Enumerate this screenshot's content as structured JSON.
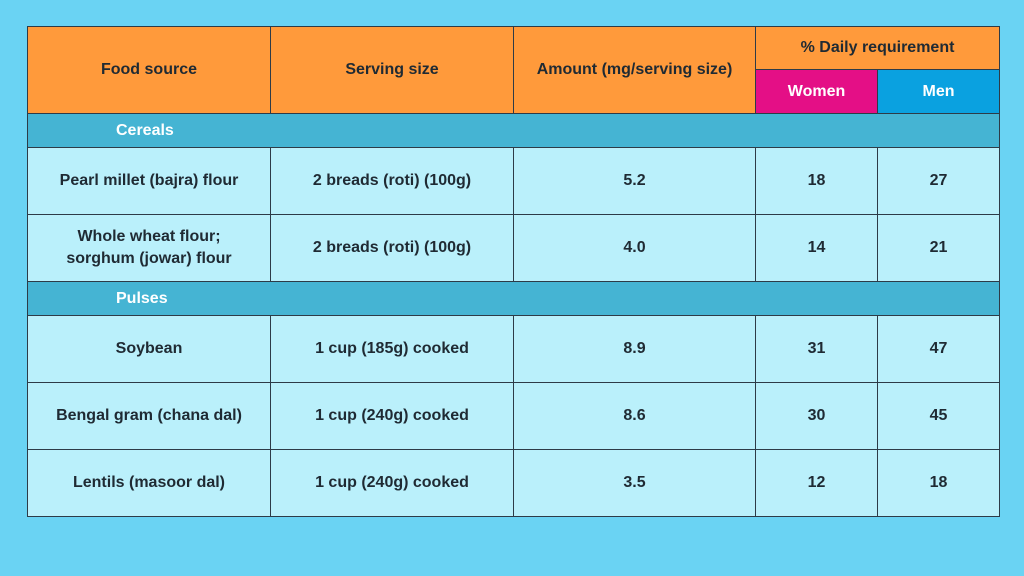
{
  "headers": {
    "food_source": "Food source",
    "serving_size": "Serving size",
    "amount": "Amount (mg/serving size)",
    "daily_requirement": "% Daily requirement",
    "women": "Women",
    "men": "Men"
  },
  "sections": [
    {
      "title": "Cereals",
      "rows": [
        {
          "food": "Pearl millet (bajra) flour",
          "serving": "2 breads (roti) (100g)",
          "amount": "5.2",
          "women": "18",
          "men": "27"
        },
        {
          "food": "Whole wheat flour;\nsorghum (jowar) flour",
          "serving": "2 breads (roti) (100g)",
          "amount": "4.0",
          "women": "14",
          "men": "21"
        }
      ]
    },
    {
      "title": "Pulses",
      "rows": [
        {
          "food": "Soybean",
          "serving": "1 cup (185g) cooked",
          "amount": "8.9",
          "women": "31",
          "men": "47"
        },
        {
          "food": "Bengal gram (chana dal)",
          "serving": "1 cup (240g) cooked",
          "amount": "8.6",
          "women": "30",
          "men": "45"
        },
        {
          "food": "Lentils (masoor dal)",
          "serving": "1 cup (240g) cooked",
          "amount": "3.5",
          "women": "12",
          "men": "18"
        }
      ]
    }
  ],
  "colors": {
    "background": "#6ad3f3",
    "header_orange": "#ff9a3b",
    "women": "#e40f86",
    "men": "#0aa1e0",
    "section_bar": "#45b4d3",
    "row": "#baf0fb"
  }
}
